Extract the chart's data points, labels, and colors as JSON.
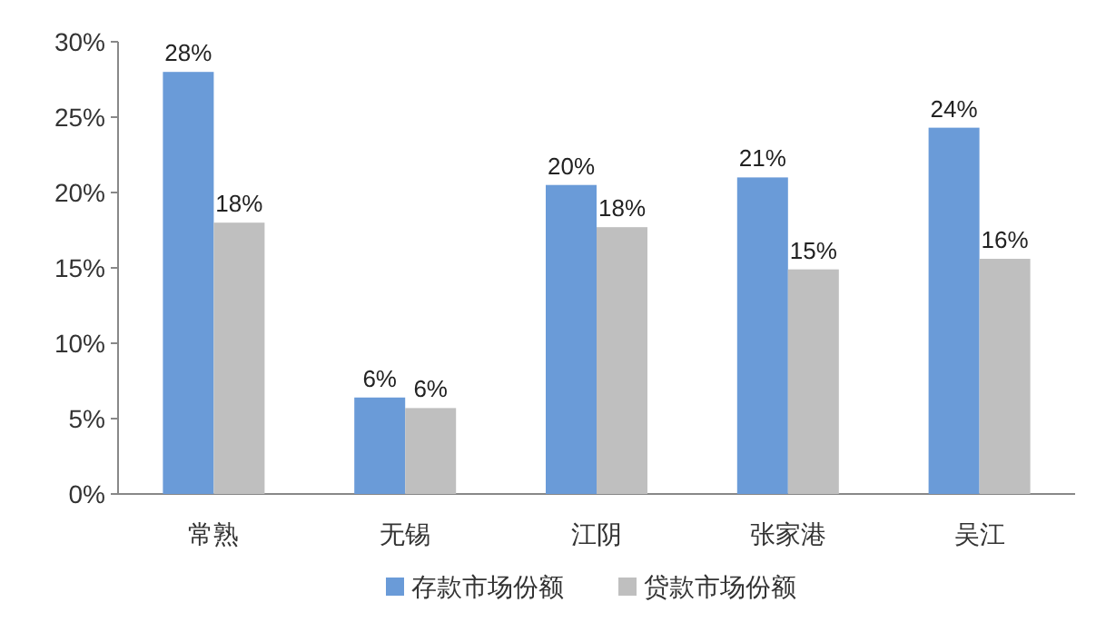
{
  "chart_data": {
    "type": "bar",
    "categories": [
      "常熟",
      "无锡",
      "江阴",
      "张家港",
      "吴江"
    ],
    "series": [
      {
        "name": "存款市场份额",
        "color": "#6a9bd8",
        "values": [
          28.0,
          6.4,
          20.5,
          21.0,
          24.3
        ],
        "value_labels": [
          "28%",
          "6%",
          "20%",
          "21%",
          "24%"
        ]
      },
      {
        "name": "贷款市场份额",
        "color": "#bfbfbf",
        "values": [
          18.0,
          5.7,
          17.7,
          14.9,
          15.6
        ],
        "value_labels": [
          "18%",
          "6%",
          "18%",
          "15%",
          "16%"
        ]
      }
    ],
    "ylim": [
      0,
      30
    ],
    "yticks": [
      {
        "value": 0,
        "label": "0%"
      },
      {
        "value": 5,
        "label": "5%"
      },
      {
        "value": 10,
        "label": "10%"
      },
      {
        "value": 15,
        "label": "15%"
      },
      {
        "value": 20,
        "label": "20%"
      },
      {
        "value": 25,
        "label": "25%"
      },
      {
        "value": 30,
        "label": "30%"
      }
    ],
    "legend": "bottom"
  }
}
